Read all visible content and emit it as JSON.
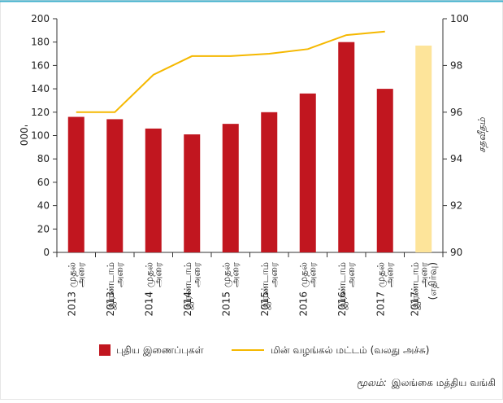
{
  "chart_data": {
    "type": "bar_line",
    "categories": [
      [
        "முதல்",
        "அரை",
        "2013"
      ],
      [
        "இரண்டாம்",
        "அரை",
        "2013"
      ],
      [
        "முதல்",
        "அரை",
        "2014"
      ],
      [
        "இரண்டாம்",
        "அரை",
        "2014"
      ],
      [
        "முதல்",
        "அரை",
        "2015"
      ],
      [
        "இரண்டாம்",
        "அரை",
        "2015"
      ],
      [
        "முதல்",
        "அரை",
        "2016"
      ],
      [
        "இரண்டாம்",
        "அரை",
        "2016"
      ],
      [
        "முதல்",
        "அரை",
        "2017"
      ],
      [
        "இரண்டாம்",
        "அரை",
        "(எதிர்வு)",
        "2017"
      ]
    ],
    "series": [
      {
        "name": "புதிய இணைப்புகள்",
        "type": "bar",
        "color": "#c1161f",
        "point_colors": [
          "#c1161f",
          "#c1161f",
          "#c1161f",
          "#c1161f",
          "#c1161f",
          "#c1161f",
          "#c1161f",
          "#c1161f",
          "#c1161f",
          "#fde49a"
        ],
        "values": [
          116,
          114,
          106,
          101,
          110,
          120,
          136,
          180,
          140,
          177
        ]
      },
      {
        "name": "மின் வழங்கல் மட்டம் (வலது அச்சு)",
        "type": "line",
        "axis": "y2",
        "color": "#f5b800",
        "values": [
          96,
          96,
          97.6,
          98.4,
          98.4,
          98.5,
          98.7,
          99.3,
          99.45,
          null
        ]
      }
    ],
    "ylabel": "'000",
    "y2label": "சதவீதம்",
    "ylim": [
      0,
      200
    ],
    "yticks": [
      0,
      20,
      40,
      60,
      80,
      100,
      120,
      140,
      160,
      180,
      200
    ],
    "y2lim": [
      90,
      100
    ],
    "y2ticks": [
      90,
      92,
      94,
      96,
      98,
      100
    ],
    "source": {
      "label": "மூலம்:",
      "text": "இலங்கை மத்திய வங்கி"
    }
  }
}
